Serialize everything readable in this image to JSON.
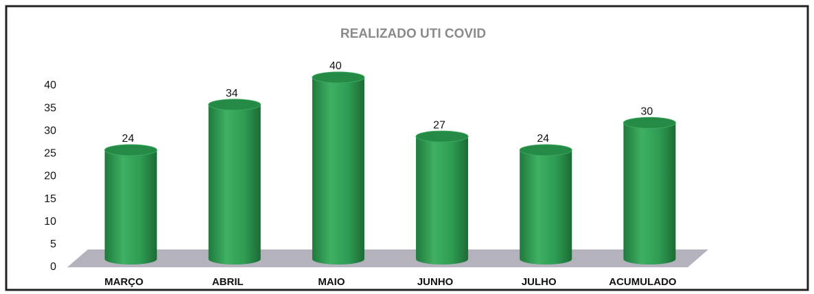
{
  "chart_data": {
    "type": "bar",
    "title": "REALIZADO UTI COVID",
    "categories": [
      "MARÇO",
      "ABRIL",
      "MAIO",
      "JUNHO",
      "JULHO",
      "ACUMULADO"
    ],
    "values": [
      24,
      34,
      40,
      27,
      24,
      30
    ],
    "color": "#2e9a52",
    "ylim": [
      0,
      40
    ],
    "yticks": [
      0,
      5,
      10,
      15,
      20,
      25,
      30,
      35,
      40
    ]
  }
}
